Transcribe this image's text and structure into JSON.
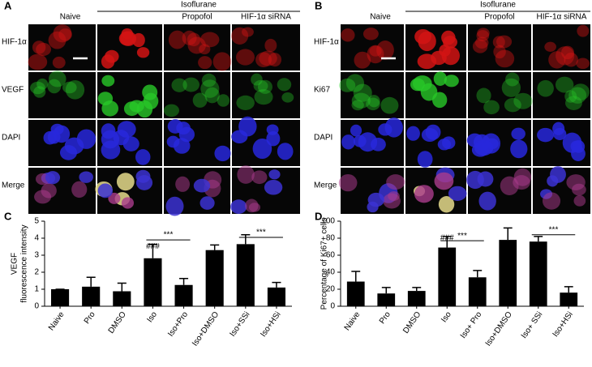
{
  "panels": [
    {
      "label": "A",
      "group": "Isoflurane",
      "columns": [
        "Naive",
        "Propofol",
        "HIF-1α siRNA"
      ],
      "rows": [
        "HIF-1α",
        "VEGF",
        "DAPI",
        "Merge"
      ]
    },
    {
      "label": "B",
      "group": "Isoflurane",
      "columns": [
        "Naive",
        "Propofol",
        "HIF-1α siRNA"
      ],
      "rows": [
        "HIF-1α",
        "Ki67",
        "DAPI",
        "Merge"
      ]
    }
  ],
  "chart_data": [
    {
      "type": "bar",
      "panel_label": "C",
      "ylabel": [
        "VEGF",
        "fluorescence intensity"
      ],
      "categories": [
        "Naive",
        "Pro",
        "DMSO",
        "Iso",
        "Iso+Pro",
        "Iso+DMSO",
        "Iso+SSi",
        "Iso+HSi"
      ],
      "values": [
        1.0,
        1.15,
        0.88,
        2.82,
        1.25,
        3.3,
        3.65,
        1.1
      ],
      "errors": [
        0,
        0.55,
        0.48,
        0.82,
        0.38,
        0.3,
        0.55,
        0.3
      ],
      "color": "#000000",
      "ylim": [
        0,
        5
      ],
      "yticks": [
        0,
        1,
        2,
        3,
        4,
        5
      ],
      "annotations": [
        "###",
        "***",
        "***"
      ]
    },
    {
      "type": "bar",
      "panel_label": "D",
      "ylabel": [
        "Percentage of Ki67+ cells"
      ],
      "categories": [
        "Naive",
        "Pro",
        "DMSO",
        "Iso",
        "Iso+ Pro",
        "Iso+DMSO",
        "Iso+ SSi",
        "Iso+HSi"
      ],
      "values": [
        29,
        15,
        18,
        69,
        34,
        78,
        76,
        16
      ],
      "errors": [
        12,
        7,
        4,
        13,
        8,
        14,
        6,
        7
      ],
      "color": "#000000",
      "ylim": [
        0,
        100
      ],
      "yticks": [
        0,
        20,
        40,
        60,
        80,
        100
      ],
      "annotations": [
        "###",
        "***",
        "***"
      ]
    }
  ]
}
